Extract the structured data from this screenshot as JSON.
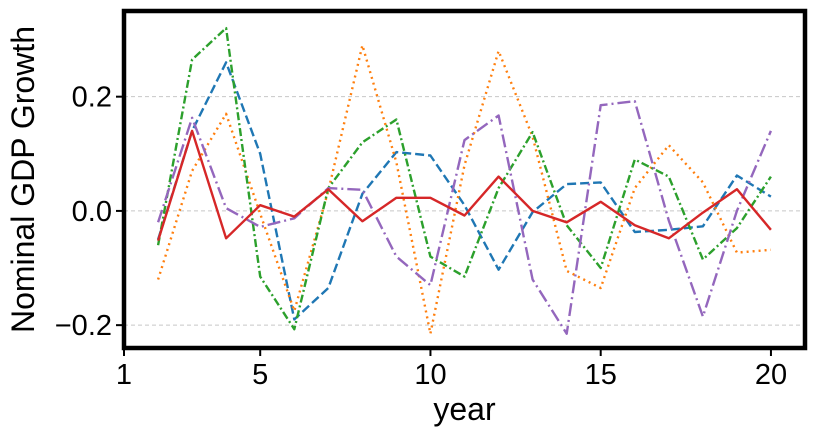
{
  "chart_data": {
    "type": "line",
    "title": "",
    "xlabel": "year",
    "ylabel": "Nominal GDP Growth",
    "xlim": [
      1,
      21
    ],
    "ylim": [
      -0.24,
      0.35
    ],
    "x_ticks": [
      1,
      5,
      10,
      15,
      20
    ],
    "x_tick_labels": [
      "1",
      "5",
      "10",
      "15",
      "20"
    ],
    "y_ticks": [
      -0.2,
      0.0,
      0.2
    ],
    "y_tick_labels": [
      "−0.2",
      "0.0",
      "0.2"
    ],
    "grid": "horizontal dashed",
    "legend": "none",
    "x": [
      2,
      3,
      4,
      5,
      6,
      7,
      8,
      9,
      10,
      11,
      12,
      13,
      14,
      15,
      16,
      17,
      18,
      19,
      20
    ],
    "series": [
      {
        "color": "#1f77b4",
        "style": "dashed",
        "values": [
          -0.05,
          0.14,
          0.26,
          0.1,
          -0.19,
          -0.135,
          0.03,
          0.103,
          0.097,
          0.01,
          -0.103,
          -0.002,
          0.047,
          0.05,
          -0.037,
          -0.033,
          -0.027,
          0.062,
          0.025
        ]
      },
      {
        "color": "#ff7f0e",
        "style": "dotted",
        "values": [
          -0.12,
          0.07,
          0.17,
          -0.005,
          -0.175,
          0.035,
          0.29,
          0.085,
          -0.215,
          0.08,
          0.28,
          0.13,
          -0.105,
          -0.135,
          0.04,
          0.115,
          0.05,
          -0.073,
          -0.068
        ]
      },
      {
        "color": "#2ca02c",
        "style": "dash-dot",
        "values": [
          -0.06,
          0.265,
          0.32,
          -0.115,
          -0.207,
          0.04,
          0.12,
          0.16,
          -0.08,
          -0.115,
          0.04,
          0.138,
          -0.025,
          -0.1,
          0.09,
          0.06,
          -0.085,
          -0.03,
          0.06
        ]
      },
      {
        "color": "#9467bd",
        "style": "long-dash-dot",
        "values": [
          -0.02,
          0.163,
          0.005,
          -0.028,
          -0.013,
          0.04,
          0.037,
          -0.08,
          -0.13,
          0.124,
          0.167,
          -0.12,
          -0.215,
          0.185,
          0.192,
          -0.017,
          -0.185,
          0.0,
          0.14
        ]
      },
      {
        "color": "#d62728",
        "style": "solid",
        "values": [
          -0.052,
          0.14,
          -0.048,
          0.01,
          -0.01,
          0.038,
          -0.018,
          0.023,
          0.023,
          -0.008,
          0.06,
          0.0,
          -0.02,
          0.016,
          -0.025,
          -0.048,
          -0.003,
          0.038,
          -0.033
        ]
      }
    ]
  }
}
